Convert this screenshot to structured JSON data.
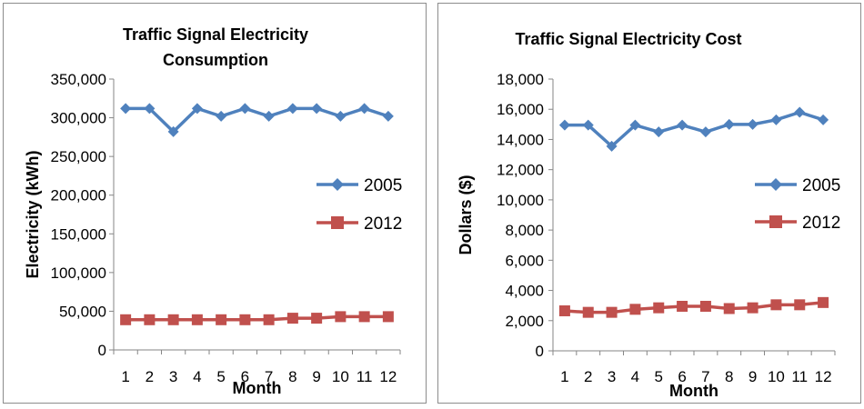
{
  "chart_data": [
    {
      "type": "line",
      "title_lines": [
        "Traffic Signal Electricity",
        "Consumption"
      ],
      "xlabel": "Month",
      "ylabel": "Electricity (kWh)",
      "categories": [
        "1",
        "2",
        "3",
        "4",
        "5",
        "6",
        "7",
        "8",
        "9",
        "10",
        "11",
        "12"
      ],
      "ylim": [
        0,
        350000
      ],
      "yticks": [
        "0",
        "50,000",
        "100,000",
        "150,000",
        "200,000",
        "250,000",
        "300,000",
        "350,000"
      ],
      "ytick_values": [
        0,
        50000,
        100000,
        150000,
        200000,
        250000,
        300000,
        350000
      ],
      "grid": false,
      "legend_position": "right",
      "series": [
        {
          "name": "2005",
          "color": "#4F81BD",
          "marker": "diamond",
          "values": [
            312000,
            312000,
            282000,
            312000,
            302000,
            312000,
            302000,
            312000,
            312000,
            302000,
            312000,
            302000
          ]
        },
        {
          "name": "2012",
          "color": "#C0504D",
          "marker": "square",
          "values": [
            39000,
            39000,
            39000,
            39000,
            39000,
            39000,
            39000,
            41000,
            41000,
            43000,
            43000,
            43000
          ]
        }
      ]
    },
    {
      "type": "line",
      "title_lines": [
        "Traffic Signal Electricity Cost"
      ],
      "xlabel": "Month",
      "ylabel": "Dollars ($)",
      "categories": [
        "1",
        "2",
        "3",
        "4",
        "5",
        "6",
        "7",
        "8",
        "9",
        "10",
        "11",
        "12"
      ],
      "ylim": [
        0,
        18000
      ],
      "yticks": [
        "0",
        "2,000",
        "4,000",
        "6,000",
        "8,000",
        "10,000",
        "12,000",
        "14,000",
        "16,000",
        "18,000"
      ],
      "ytick_values": [
        0,
        2000,
        4000,
        6000,
        8000,
        10000,
        12000,
        14000,
        16000,
        18000
      ],
      "grid": false,
      "legend_position": "right",
      "series": [
        {
          "name": "2005",
          "color": "#4F81BD",
          "marker": "diamond",
          "values": [
            14950,
            14950,
            13550,
            14950,
            14500,
            14950,
            14500,
            15000,
            15000,
            15300,
            15800,
            15300
          ]
        },
        {
          "name": "2012",
          "color": "#C0504D",
          "marker": "square",
          "values": [
            2650,
            2550,
            2550,
            2750,
            2850,
            2950,
            2950,
            2800,
            2850,
            3050,
            3050,
            3200
          ]
        }
      ]
    }
  ]
}
